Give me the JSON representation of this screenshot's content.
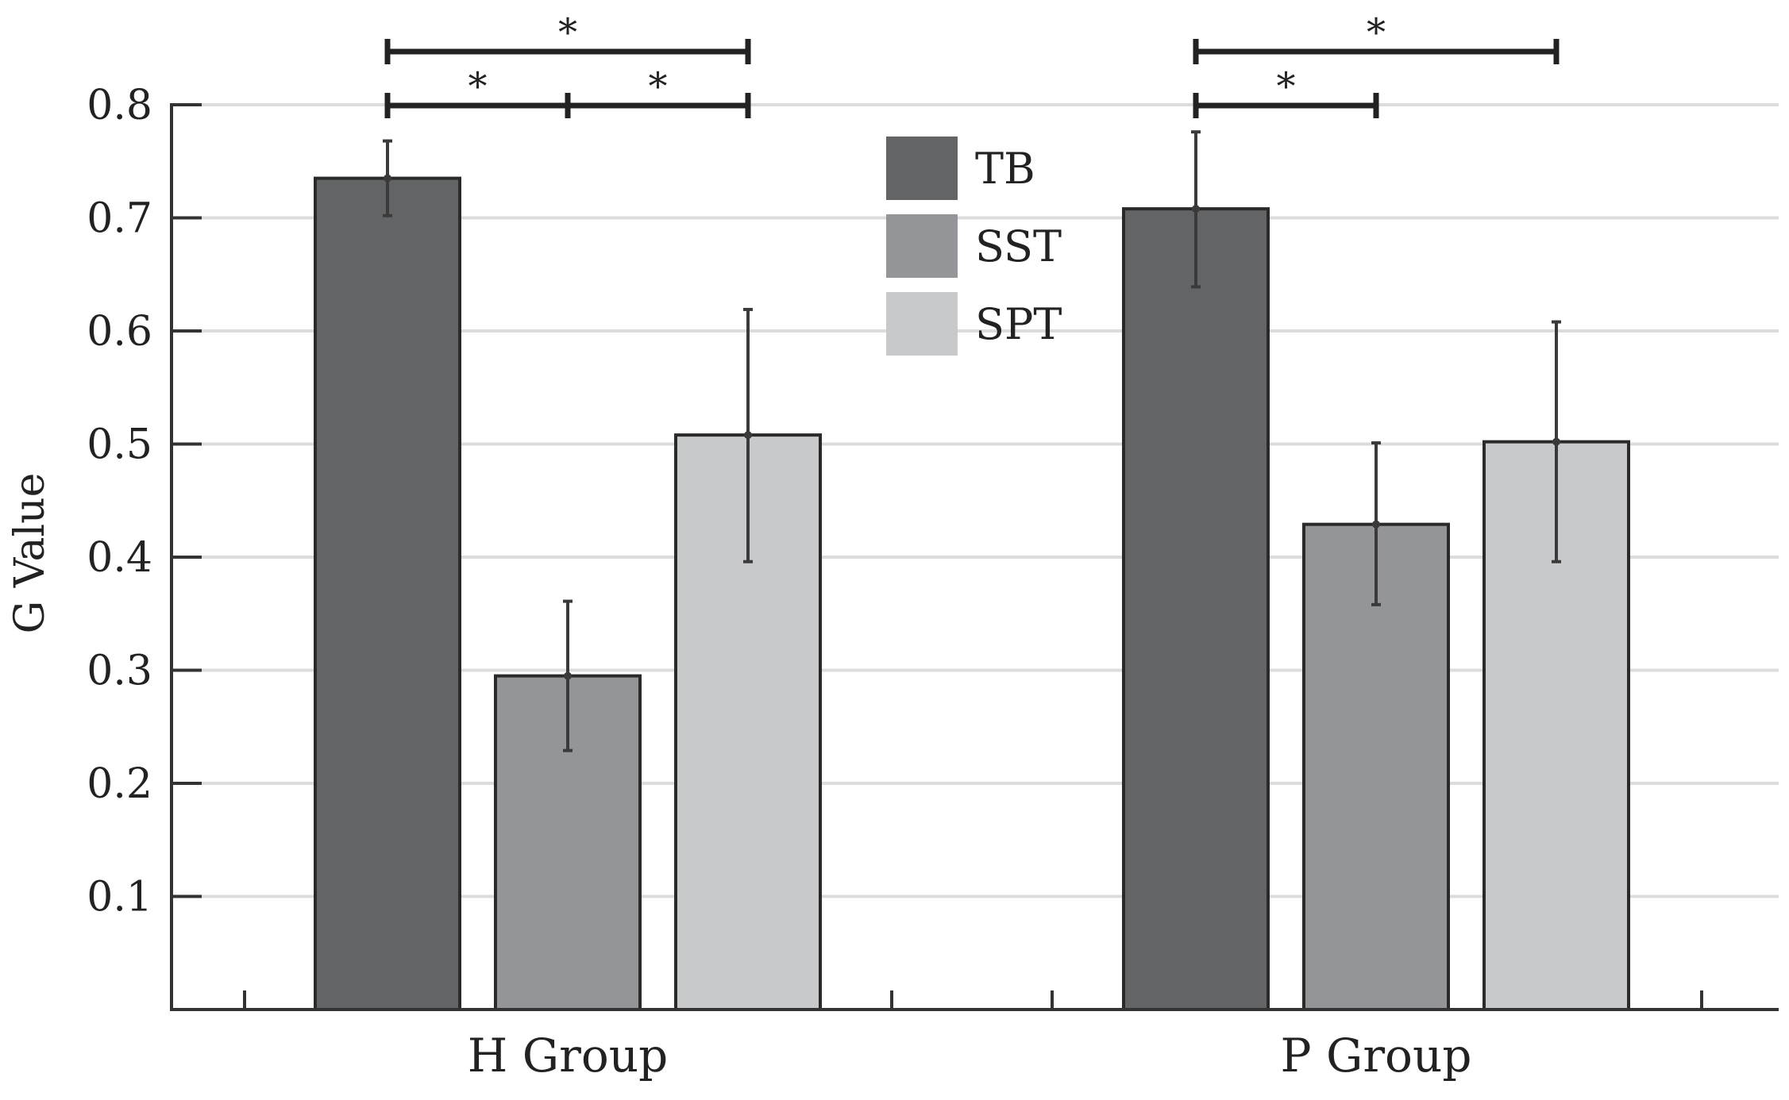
{
  "chart_data": {
    "type": "bar",
    "title": "",
    "xlabel": "",
    "ylabel": "G Value",
    "ylim": [
      0,
      0.8
    ],
    "yticks": [
      0.1,
      0.2,
      0.3,
      0.4,
      0.5,
      0.6,
      0.7,
      0.8
    ],
    "ytick_labels": [
      "0.1",
      "0.2",
      "0.3",
      "0.4",
      "0.5",
      "0.6",
      "0.7",
      "0.8"
    ],
    "categories": [
      "H Group",
      "P Group"
    ],
    "grid": true,
    "legend_position": "top-center",
    "series": [
      {
        "name": "TB",
        "color": "#636466",
        "values": [
          0.735,
          0.708
        ],
        "error_low": [
          0.702,
          0.639
        ],
        "error_high": [
          0.768,
          0.776
        ]
      },
      {
        "name": "SST",
        "color": "#939598",
        "values": [
          0.295,
          0.429
        ],
        "error_low": [
          0.229,
          0.358
        ],
        "error_high": [
          0.361,
          0.501
        ]
      },
      {
        "name": "SPT",
        "color": "#c8c9cb",
        "values": [
          0.508,
          0.502
        ],
        "error_low": [
          0.396,
          0.396
        ],
        "error_high": [
          0.619,
          0.608
        ]
      }
    ],
    "significance": [
      {
        "group": 0,
        "from": 0,
        "to": 2,
        "label": "*",
        "level": 2
      },
      {
        "group": 0,
        "from": 0,
        "to": 1,
        "label": "*",
        "level": 1
      },
      {
        "group": 0,
        "from": 1,
        "to": 2,
        "label": "*",
        "level": 1
      },
      {
        "group": 1,
        "from": 0,
        "to": 2,
        "label": "*",
        "level": 2
      },
      {
        "group": 1,
        "from": 0,
        "to": 1,
        "label": "*",
        "level": 1
      }
    ]
  }
}
